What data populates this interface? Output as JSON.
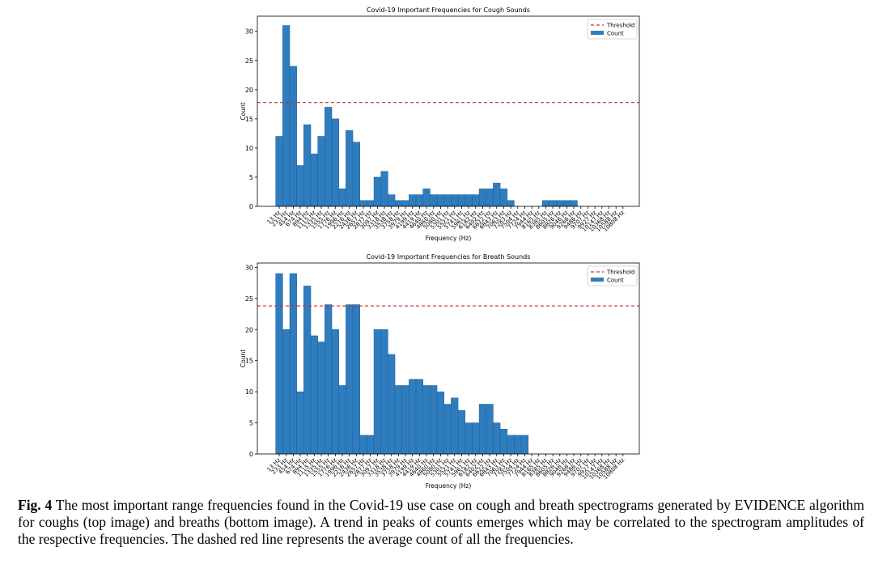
{
  "chart_data": [
    {
      "type": "bar",
      "title": "Covid-19 Important Frequencies for Cough Sounds",
      "xlabel": "Frequency (Hz)",
      "ylabel": "Count",
      "categories": [
        "13 Hz",
        "233 Hz",
        "454 Hz",
        "674 Hz",
        "894 Hz",
        "1115 Hz",
        "1335 Hz",
        "1555 Hz",
        "1776 Hz",
        "1996 Hz",
        "2216 Hz",
        "2436 Hz",
        "2657 Hz",
        "2877 Hz",
        "3097 Hz",
        "3318 Hz",
        "3538 Hz",
        "3758 Hz",
        "3979 Hz",
        "4199 Hz",
        "4419 Hz",
        "4640 Hz",
        "4860 Hz",
        "5080 Hz",
        "5301 Hz",
        "5521 Hz",
        "5741 Hz",
        "5961 Hz",
        "6182 Hz",
        "6402 Hz",
        "6622 Hz",
        "6843 Hz",
        "7063 Hz",
        "7283 Hz",
        "7504 Hz",
        "7724 Hz",
        "7944 Hz",
        "8165 Hz",
        "8385 Hz",
        "8605 Hz",
        "8826 Hz",
        "9046 Hz",
        "9266 Hz",
        "9486 Hz",
        "9707 Hz",
        "9927 Hz",
        "10147 Hz",
        "10368 Hz",
        "10588 Hz",
        "10808 Hz"
      ],
      "series": [
        {
          "name": "Count",
          "color": "#2f7dbf",
          "values": [
            12,
            31,
            24,
            7,
            14,
            9,
            12,
            17,
            15,
            3,
            13,
            11,
            1,
            1,
            5,
            6,
            2,
            1,
            1,
            2,
            2,
            3,
            2,
            2,
            2,
            2,
            2,
            2,
            2,
            3,
            3,
            4,
            3,
            1,
            0,
            0,
            0,
            0,
            1,
            1,
            1,
            1,
            1,
            0,
            0,
            0,
            0,
            0,
            0,
            0
          ]
        }
      ],
      "threshold": {
        "name": "Threshold",
        "value": 17.8,
        "color": "#d62728"
      },
      "ylim": [
        0,
        32.6
      ],
      "yticks": [
        0,
        5,
        10,
        15,
        20,
        25,
        30
      ],
      "legend": "upper right"
    },
    {
      "type": "bar",
      "title": "Covid-19 Important Frequencies for Breath Sounds",
      "xlabel": "Frequency (Hz)",
      "ylabel": "Count",
      "categories": [
        "13 Hz",
        "233 Hz",
        "454 Hz",
        "674 Hz",
        "894 Hz",
        "1115 Hz",
        "1335 Hz",
        "1555 Hz",
        "1776 Hz",
        "1996 Hz",
        "2216 Hz",
        "2436 Hz",
        "2657 Hz",
        "2877 Hz",
        "3097 Hz",
        "3318 Hz",
        "3538 Hz",
        "3758 Hz",
        "3979 Hz",
        "4199 Hz",
        "4419 Hz",
        "4640 Hz",
        "4860 Hz",
        "5080 Hz",
        "5301 Hz",
        "5521 Hz",
        "5741 Hz",
        "5961 Hz",
        "6182 Hz",
        "6402 Hz",
        "6622 Hz",
        "6843 Hz",
        "7063 Hz",
        "7283 Hz",
        "7504 Hz",
        "7724 Hz",
        "7944 Hz",
        "8165 Hz",
        "8385 Hz",
        "8605 Hz",
        "8826 Hz",
        "9046 Hz",
        "9266 Hz",
        "9486 Hz",
        "9707 Hz",
        "9927 Hz",
        "10147 Hz",
        "10368 Hz",
        "10588 Hz",
        "10808 Hz"
      ],
      "series": [
        {
          "name": "Count",
          "color": "#2f7dbf",
          "values": [
            29,
            20,
            29,
            10,
            27,
            19,
            18,
            24,
            20,
            11,
            24,
            24,
            3,
            3,
            20,
            20,
            16,
            11,
            11,
            12,
            12,
            11,
            11,
            10,
            8,
            9,
            7,
            5,
            5,
            8,
            8,
            5,
            4,
            3,
            3,
            3,
            0,
            0,
            0,
            0,
            0,
            0,
            0,
            0,
            0,
            0,
            0,
            0,
            0,
            0
          ]
        }
      ],
      "threshold": {
        "name": "Threshold",
        "value": 23.8,
        "color": "#d62728"
      },
      "ylim": [
        0,
        30.7
      ],
      "yticks": [
        0,
        5,
        10,
        15,
        20,
        25,
        30
      ],
      "legend": "upper right"
    }
  ],
  "caption": {
    "label": "Fig. 4",
    "text": " The most important range frequencies found in the Covid-19 use case on cough and breath spectrograms generated by EVIDENCE algorithm for coughs (top image) and breaths (bottom image). A trend in peaks of counts emerges which may be correlated to the spectrogram amplitudes of the respective frequencies. The dashed red line represents the average count of all the frequencies."
  }
}
